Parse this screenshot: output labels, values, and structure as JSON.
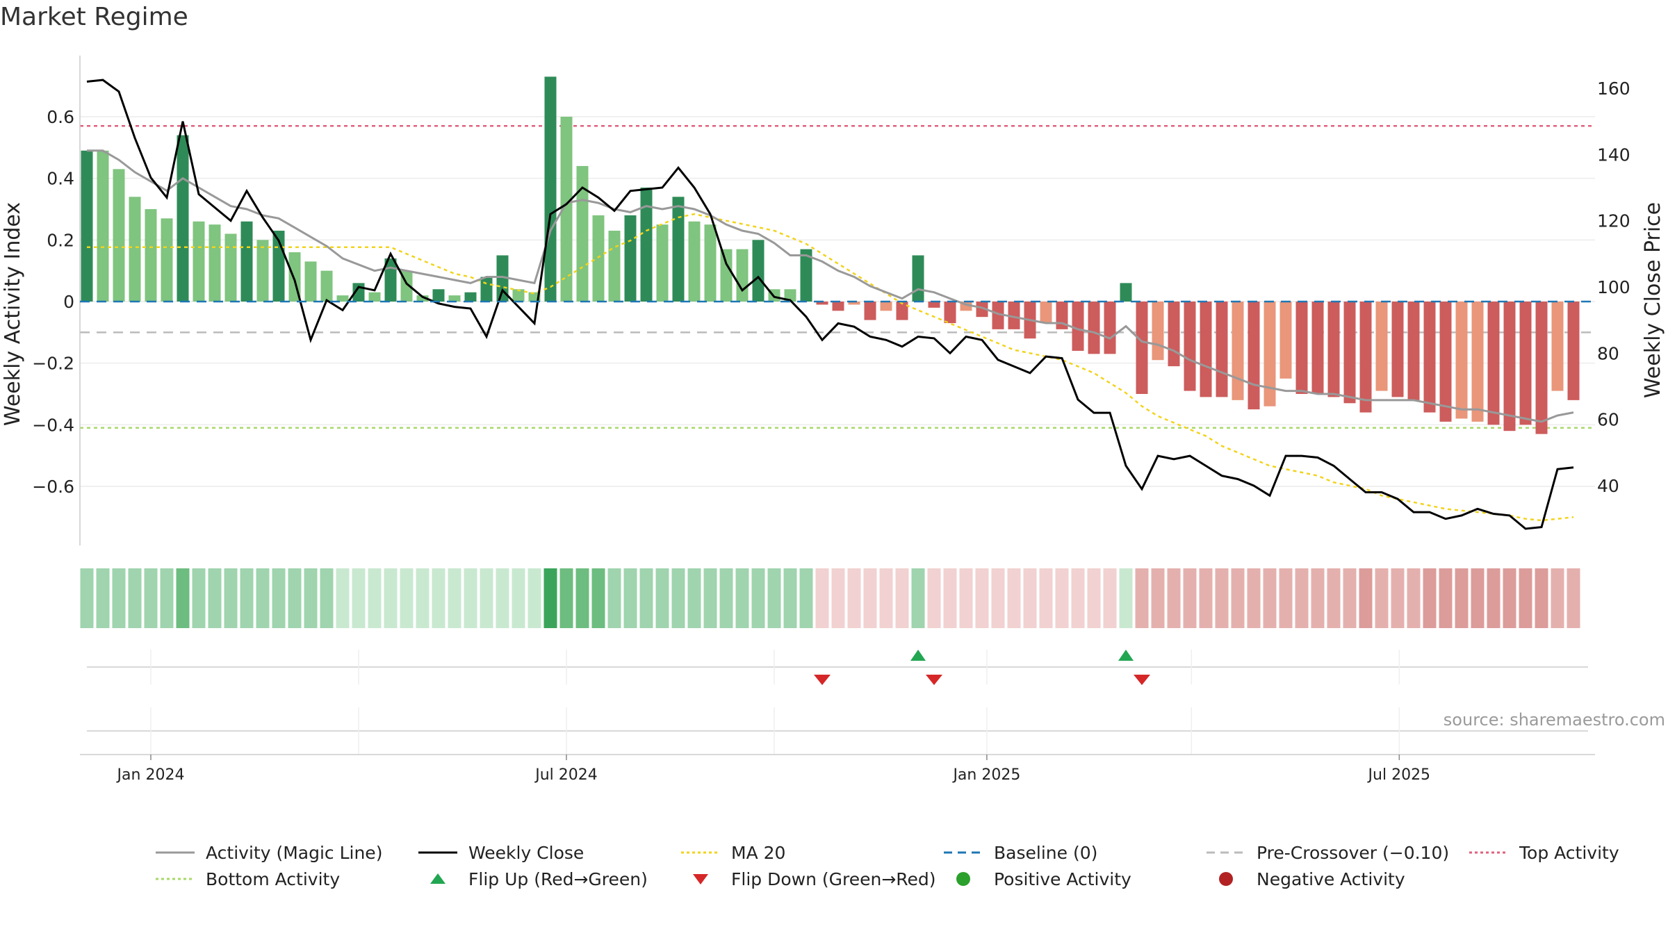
{
  "title": "Market Regime",
  "source": "source: sharemaestro.com",
  "colors": {
    "pos_strong": "#2e8b57",
    "pos_light": "#7fc47f",
    "neg_strong": "#cd5c5c",
    "neg_light": "#e9967a",
    "activity_line": "#999999",
    "close_line": "#000000",
    "ma_line": "#f2d31b",
    "baseline": "#1f77b4",
    "pre_crossover": "#bbbbbb",
    "top_activity": "#e0607e",
    "bottom_activity": "#a8d86a",
    "flip_up": "#22a652",
    "flip_down": "#d62728",
    "positive_marker": "#2ca02c",
    "negative_marker": "#b22222"
  },
  "legend": [
    {
      "label": "Activity (Magic Line)",
      "kind": "line",
      "color": "#999999",
      "dash": ""
    },
    {
      "label": "Weekly Close",
      "kind": "line",
      "color": "#000000",
      "dash": ""
    },
    {
      "label": "MA 20",
      "kind": "line",
      "color": "#f2d31b",
      "dash": "4,4"
    },
    {
      "label": "Baseline (0)",
      "kind": "line",
      "color": "#1f77b4",
      "dash": "12,8"
    },
    {
      "label": "Pre-Crossover (−0.10)",
      "kind": "line",
      "color": "#bbbbbb",
      "dash": "12,8"
    },
    {
      "label": "Top Activity",
      "kind": "line",
      "color": "#e0607e",
      "dash": "4,4"
    },
    {
      "label": "Bottom Activity",
      "kind": "line",
      "color": "#a8d86a",
      "dash": "4,4"
    },
    {
      "label": "Flip Up (Red→Green)",
      "kind": "tri-up",
      "color": "#22a652",
      "dash": ""
    },
    {
      "label": "Flip Down (Green→Red)",
      "kind": "tri-down",
      "color": "#d62728",
      "dash": ""
    },
    {
      "label": "Positive Activity",
      "kind": "dot",
      "color": "#2ca02c",
      "dash": ""
    },
    {
      "label": "Negative Activity",
      "kind": "dot",
      "color": "#b22222",
      "dash": ""
    }
  ],
  "chart_data": {
    "type": "bar",
    "ylabel": "Weekly Activity Index",
    "y2label": "Weekly Close Price",
    "ylim": [
      -0.8,
      0.8
    ],
    "y2lim": [
      23,
      170
    ],
    "yticks": [
      0.6,
      0.4,
      0.2,
      0,
      -0.2,
      -0.4,
      -0.6
    ],
    "ytick_labels": [
      "0.6",
      "0.4",
      "0.2",
      "0",
      "−0.2",
      "−0.4",
      "−0.6"
    ],
    "y2ticks": [
      160,
      140,
      120,
      100,
      80,
      60,
      40
    ],
    "y2tick_labels": [
      "160",
      "140",
      "120",
      "100",
      "80",
      "60",
      "40"
    ],
    "xticks": [
      {
        "index": 4,
        "label": "Jan 2024"
      },
      {
        "index": 30,
        "label": "Jul 2024"
      },
      {
        "index": 56.3,
        "label": "Jan 2025"
      },
      {
        "index": 82.1,
        "label": "Jul 2025"
      }
    ],
    "n_weeks": 94,
    "activity": [
      0.49,
      0.49,
      0.43,
      0.34,
      0.3,
      0.27,
      0.54,
      0.26,
      0.25,
      0.22,
      0.26,
      0.2,
      0.23,
      0.16,
      0.13,
      0.1,
      0.02,
      0.06,
      0.03,
      0.14,
      0.1,
      0.02,
      0.04,
      0.02,
      0.03,
      0.08,
      0.15,
      0.04,
      0.03,
      0.73,
      0.6,
      0.44,
      0.28,
      0.23,
      0.28,
      0.37,
      0.25,
      0.34,
      0.26,
      0.25,
      0.17,
      0.17,
      0.2,
      0.04,
      0.04,
      0.17,
      -0.01,
      -0.03,
      -0.01,
      -0.06,
      -0.03,
      -0.06,
      0.15,
      -0.02,
      -0.07,
      -0.03,
      -0.05,
      -0.09,
      -0.09,
      -0.12,
      -0.07,
      -0.09,
      -0.16,
      -0.17,
      -0.17,
      0.06,
      -0.3,
      -0.19,
      -0.21,
      -0.29,
      -0.31,
      -0.31,
      -0.32,
      -0.35,
      -0.34,
      -0.25,
      -0.3,
      -0.3,
      -0.31,
      -0.33,
      -0.36,
      -0.29,
      -0.31,
      -0.32,
      -0.36,
      -0.39,
      -0.38,
      -0.39,
      -0.4,
      -0.42,
      -0.4,
      -0.43,
      -0.29,
      -0.32
    ],
    "bar_shade": [
      "s",
      "l",
      "l",
      "l",
      "l",
      "l",
      "s",
      "l",
      "l",
      "l",
      "s",
      "l",
      "s",
      "l",
      "l",
      "l",
      "l",
      "s",
      "l",
      "s",
      "l",
      "l",
      "s",
      "l",
      "s",
      "s",
      "s",
      "l",
      "l",
      "s",
      "l",
      "l",
      "l",
      "l",
      "s",
      "s",
      "l",
      "s",
      "l",
      "l",
      "l",
      "l",
      "s",
      "l",
      "l",
      "s",
      "s",
      "s",
      "l",
      "s",
      "l",
      "s",
      "s",
      "s",
      "s",
      "l",
      "s",
      "s",
      "s",
      "s",
      "l",
      "s",
      "s",
      "s",
      "s",
      "s",
      "s",
      "l",
      "s",
      "s",
      "s",
      "s",
      "l",
      "s",
      "l",
      "l",
      "s",
      "s",
      "s",
      "s",
      "s",
      "l",
      "s",
      "s",
      "s",
      "s",
      "l",
      "l",
      "s",
      "s",
      "s",
      "s",
      "l",
      "s"
    ],
    "magic_line": [
      0.49,
      0.49,
      0.46,
      0.42,
      0.39,
      0.36,
      0.4,
      0.37,
      0.34,
      0.31,
      0.3,
      0.28,
      0.27,
      0.24,
      0.21,
      0.18,
      0.14,
      0.12,
      0.1,
      0.11,
      0.1,
      0.09,
      0.08,
      0.07,
      0.06,
      0.08,
      0.08,
      0.07,
      0.06,
      0.23,
      0.32,
      0.33,
      0.32,
      0.3,
      0.29,
      0.31,
      0.3,
      0.31,
      0.3,
      0.28,
      0.25,
      0.23,
      0.22,
      0.19,
      0.15,
      0.15,
      0.13,
      0.1,
      0.08,
      0.05,
      0.03,
      0.01,
      0.04,
      0.03,
      0.01,
      -0.01,
      -0.02,
      -0.04,
      -0.05,
      -0.06,
      -0.07,
      -0.07,
      -0.09,
      -0.1,
      -0.12,
      -0.08,
      -0.13,
      -0.14,
      -0.16,
      -0.19,
      -0.21,
      -0.23,
      -0.25,
      -0.27,
      -0.28,
      -0.29,
      -0.29,
      -0.3,
      -0.3,
      -0.31,
      -0.32,
      -0.32,
      -0.32,
      -0.32,
      -0.33,
      -0.34,
      -0.35,
      -0.35,
      -0.36,
      -0.37,
      -0.38,
      -0.39,
      -0.37,
      -0.36
    ],
    "weekly_close": [
      162,
      162.5,
      159,
      145,
      133,
      127,
      150,
      128,
      124,
      120,
      129,
      121,
      114,
      102,
      84,
      96,
      93,
      100,
      99,
      110,
      101,
      97,
      95,
      94,
      93.5,
      85,
      99,
      94,
      89,
      122,
      125,
      130,
      127,
      123,
      129,
      129.5,
      130,
      136,
      130,
      122,
      107,
      99,
      103,
      97,
      96,
      91,
      84,
      89,
      88,
      85,
      84,
      82,
      85,
      84.5,
      80,
      85,
      84,
      78,
      76,
      74,
      79,
      78.5,
      66,
      62,
      62,
      46,
      39,
      49,
      48,
      49,
      46,
      43,
      42,
      40,
      37,
      49,
      49,
      48.5,
      46,
      42,
      38,
      38,
      36,
      32,
      32,
      30,
      31,
      33,
      31.5,
      31,
      27,
      27.5,
      45,
      45.5
    ],
    "ma20": [
      112,
      112,
      112,
      112,
      112,
      112,
      112,
      112,
      112,
      112,
      112,
      112,
      112,
      112,
      112,
      112,
      112,
      112,
      112,
      112,
      110,
      108,
      106,
      104,
      103,
      101,
      100,
      99,
      98,
      100,
      103,
      106,
      109,
      112,
      114,
      117,
      119,
      121,
      122,
      121,
      120,
      119,
      118,
      117,
      115,
      113,
      110,
      107,
      104,
      101,
      98,
      95,
      93,
      91,
      89,
      87,
      85,
      83,
      81,
      80,
      79,
      78,
      76,
      74,
      71,
      68,
      64,
      61,
      59,
      57,
      55,
      52,
      50,
      48,
      46,
      45,
      44,
      43,
      41,
      40,
      39,
      37,
      36,
      35,
      34,
      33,
      32.5,
      32,
      31.5,
      31,
      30,
      29.5,
      30,
      30.5
    ],
    "reference_lines": {
      "baseline": 0,
      "pre_crossover": -0.1,
      "top_activity": 0.57,
      "bottom_activity": -0.41
    },
    "strip_shades": [
      1,
      1,
      1,
      1,
      1,
      1,
      2,
      1,
      1,
      1,
      1,
      1,
      1,
      1,
      1,
      1,
      0,
      0,
      0,
      0,
      0,
      0,
      0,
      0,
      0,
      0,
      0,
      0,
      0,
      3,
      2,
      2,
      2,
      1,
      1,
      1,
      1,
      1,
      1,
      1,
      1,
      1,
      1,
      1,
      1,
      1,
      -1,
      -1,
      -1,
      -1,
      -1,
      -1,
      1,
      -1,
      -1,
      -1,
      -1,
      -1,
      -1,
      -1,
      -1,
      -1,
      -1,
      -1,
      -1,
      0,
      -2,
      -2,
      -2,
      -2,
      -2,
      -2,
      -2,
      -2,
      -2,
      -2,
      -2,
      -2,
      -2,
      -2,
      -2,
      -2,
      -2,
      -2,
      -2,
      -2,
      -2,
      -2,
      -2,
      -2,
      -2,
      -2,
      -2,
      -2
    ],
    "flip_up": [
      52,
      65
    ],
    "flip_down": [
      46,
      53,
      66
    ]
  }
}
